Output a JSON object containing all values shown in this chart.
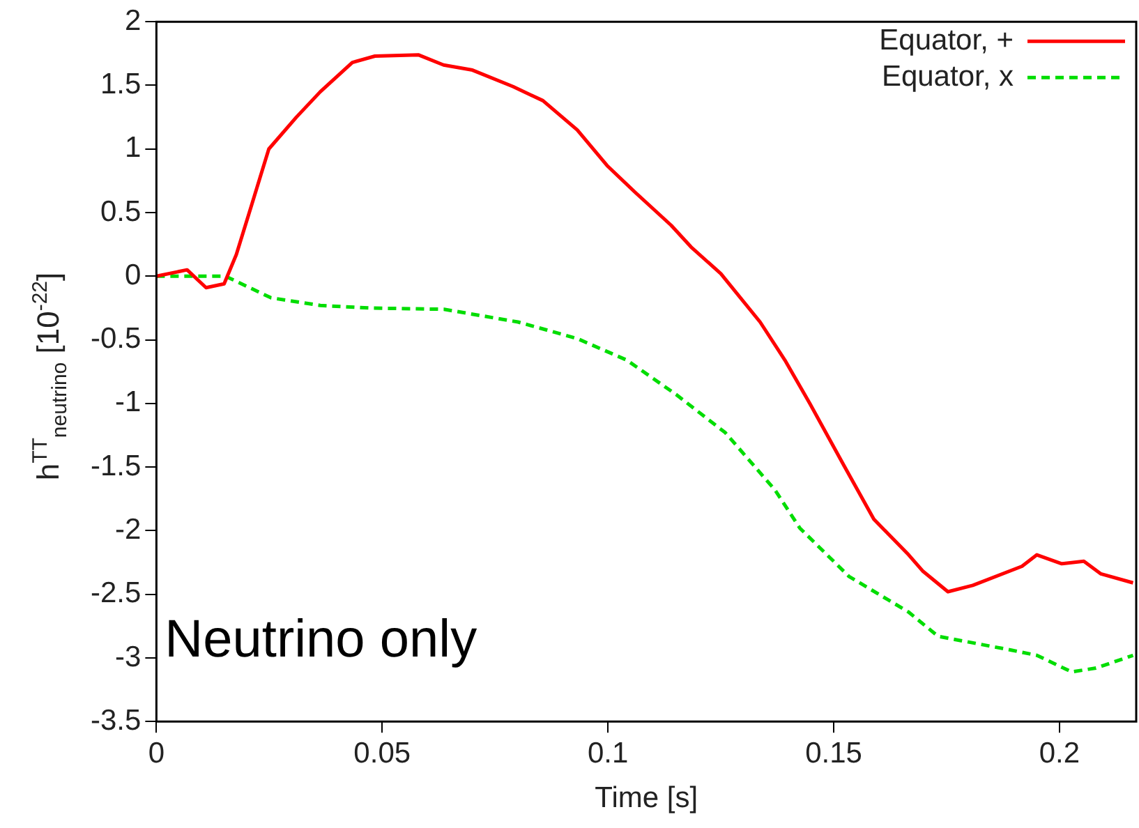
{
  "chart_data": {
    "type": "line",
    "xlabel": "Time [s]",
    "ylabel": "h$^{TT}$$_{neutrino}$ [10$^{-22}$]",
    "annotations": [
      "Neutrino only"
    ],
    "xlim": [
      0,
      0.217
    ],
    "xticks": [
      0,
      0.05,
      0.1,
      0.15,
      0.2
    ],
    "ylim": [
      -3.5,
      2
    ],
    "yticks": [
      -3.5,
      -3,
      -2.5,
      -2,
      -1.5,
      -1,
      -0.5,
      0,
      0.5,
      1,
      1.5,
      2
    ],
    "grid": false,
    "legend": "top right",
    "marker": "none",
    "series": [
      {
        "name": "Equator, +",
        "color": "#ff0000",
        "line_style": "solid",
        "x": [
          0,
          0.0068,
          0.011,
          0.015,
          0.0177,
          0.021,
          0.0249,
          0.031,
          0.0363,
          0.0434,
          0.0484,
          0.058,
          0.0636,
          0.07,
          0.079,
          0.0856,
          0.0932,
          0.0998,
          0.106,
          0.114,
          0.1184,
          0.125,
          0.1337,
          0.1392,
          0.1447,
          0.1523,
          0.1589,
          0.1666,
          0.1698,
          0.1753,
          0.1808,
          0.1917,
          0.195,
          0.2005,
          0.2054,
          0.2092,
          0.2163
        ],
        "values": [
          0,
          0.05,
          -0.09,
          -0.06,
          0.17,
          0.55,
          1.0,
          1.25,
          1.45,
          1.68,
          1.73,
          1.74,
          1.66,
          1.62,
          1.49,
          1.38,
          1.15,
          0.87,
          0.66,
          0.4,
          0.23,
          0.02,
          -0.36,
          -0.66,
          -1.0,
          -1.49,
          -1.91,
          -2.19,
          -2.32,
          -2.48,
          -2.43,
          -2.28,
          -2.19,
          -2.26,
          -2.24,
          -2.34,
          -2.41
        ]
      },
      {
        "name": "Equator, x",
        "color": "#00dd00",
        "line_style": "dashed",
        "x": [
          0,
          0.0153,
          0.0254,
          0.0363,
          0.0472,
          0.0637,
          0.0801,
          0.0932,
          0.1042,
          0.1151,
          0.126,
          0.137,
          0.1425,
          0.1534,
          0.1666,
          0.1731,
          0.1895,
          0.195,
          0.2027,
          0.2081,
          0.2163
        ],
        "values": [
          0,
          0,
          -0.17,
          -0.23,
          -0.25,
          -0.26,
          -0.36,
          -0.49,
          -0.66,
          -0.93,
          -1.23,
          -1.68,
          -1.98,
          -2.36,
          -2.64,
          -2.83,
          -2.94,
          -2.98,
          -3.11,
          -3.08,
          -2.98
        ]
      }
    ]
  }
}
